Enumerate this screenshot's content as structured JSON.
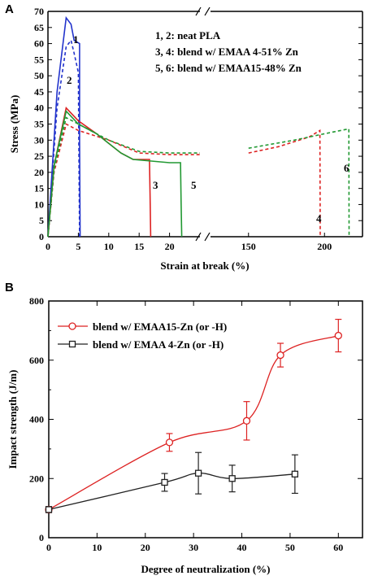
{
  "chart_data": [
    {
      "type": "line",
      "panel": "A",
      "xlabel": "Strain at break (%)",
      "ylabel": "Stress (MPa)",
      "ylim": [
        0,
        70
      ],
      "yticks": [
        0,
        5,
        10,
        15,
        20,
        25,
        30,
        35,
        40,
        45,
        50,
        55,
        60,
        65,
        70
      ],
      "xaxis_break": {
        "segment1": [
          0,
          25
        ],
        "segment2": [
          125,
          225
        ]
      },
      "xticks": [
        0,
        5,
        10,
        15,
        20,
        150,
        200
      ],
      "legend": [
        "1, 2:  neat PLA",
        "3, 4:  blend w/ EMAA 4-51% Zn",
        "5, 6:  blend w/ EMAA15-48% Zn"
      ],
      "series": [
        {
          "name": "1",
          "color": "#2233cc",
          "dashed": false,
          "x": [
            0,
            1.5,
            3,
            3.8,
            4.3,
            5.2,
            5.2,
            5.3
          ],
          "y": [
            0,
            45,
            68,
            66,
            61,
            60,
            30,
            0
          ]
        },
        {
          "name": "2",
          "color": "#2233cc",
          "dashed": true,
          "x": [
            0,
            1.5,
            3,
            3.8,
            4.3,
            5.0,
            5.1,
            5.2
          ],
          "y": [
            0,
            40,
            59,
            61,
            57,
            51,
            25,
            0
          ]
        },
        {
          "name": "3",
          "color": "#dd2222",
          "dashed": false,
          "x": [
            0,
            1,
            3,
            5,
            8,
            10,
            12,
            14,
            16.7,
            16.8,
            16.9
          ],
          "y": [
            0,
            22,
            40,
            36,
            32,
            29,
            26,
            24,
            24,
            12,
            0
          ]
        },
        {
          "name": "4",
          "color": "#dd2222",
          "dashed": true,
          "x": [
            0,
            1,
            3,
            5,
            10,
            15,
            20,
            25,
            150,
            170,
            190,
            197,
            197.2
          ],
          "y": [
            0,
            20,
            35,
            33,
            30,
            26,
            25.5,
            25.5,
            26,
            28,
            31,
            33,
            0
          ]
        },
        {
          "name": "5",
          "color": "#229933",
          "dashed": false,
          "x": [
            0,
            1,
            3,
            5,
            8,
            10,
            12,
            14,
            17,
            20,
            21.8,
            21.9,
            22
          ],
          "y": [
            0,
            22,
            39,
            35,
            32,
            29,
            26,
            24,
            23.5,
            23,
            23,
            11,
            0
          ]
        },
        {
          "name": "6",
          "color": "#229933",
          "dashed": true,
          "x": [
            0,
            1,
            3,
            5,
            10,
            15,
            20,
            25,
            150,
            180,
            200,
            216,
            216.2
          ],
          "y": [
            0,
            21,
            37,
            35,
            30,
            26.5,
            26,
            26,
            27.5,
            30,
            32,
            33.5,
            0
          ]
        }
      ]
    },
    {
      "type": "scatter",
      "panel": "B",
      "xlabel": "Degree of neutralization (%)",
      "ylabel": "Impact strength (J/m)",
      "xlim": [
        0,
        65
      ],
      "ylim": [
        0,
        800
      ],
      "xticks": [
        0,
        10,
        20,
        30,
        40,
        50,
        60
      ],
      "yticks": [
        0,
        200,
        400,
        600,
        800
      ],
      "series": [
        {
          "name": "blend w/ EMAA15-Zn (or -H)",
          "color": "#dd2222",
          "marker": "circle",
          "x": [
            0,
            25,
            41,
            48,
            60
          ],
          "y": [
            95,
            322,
            395,
            617,
            683
          ],
          "err": [
            10,
            30,
            65,
            40,
            55
          ]
        },
        {
          "name": "blend w/ EMAA 4-Zn (or -H)",
          "color": "#222222",
          "marker": "square",
          "x": [
            0,
            24,
            31,
            38,
            51
          ],
          "y": [
            95,
            187,
            218,
            200,
            215
          ],
          "err": [
            10,
            30,
            70,
            45,
            65
          ]
        }
      ]
    }
  ],
  "labels": {
    "panel_a": "A",
    "panel_b": "B",
    "break_mark": "//"
  }
}
